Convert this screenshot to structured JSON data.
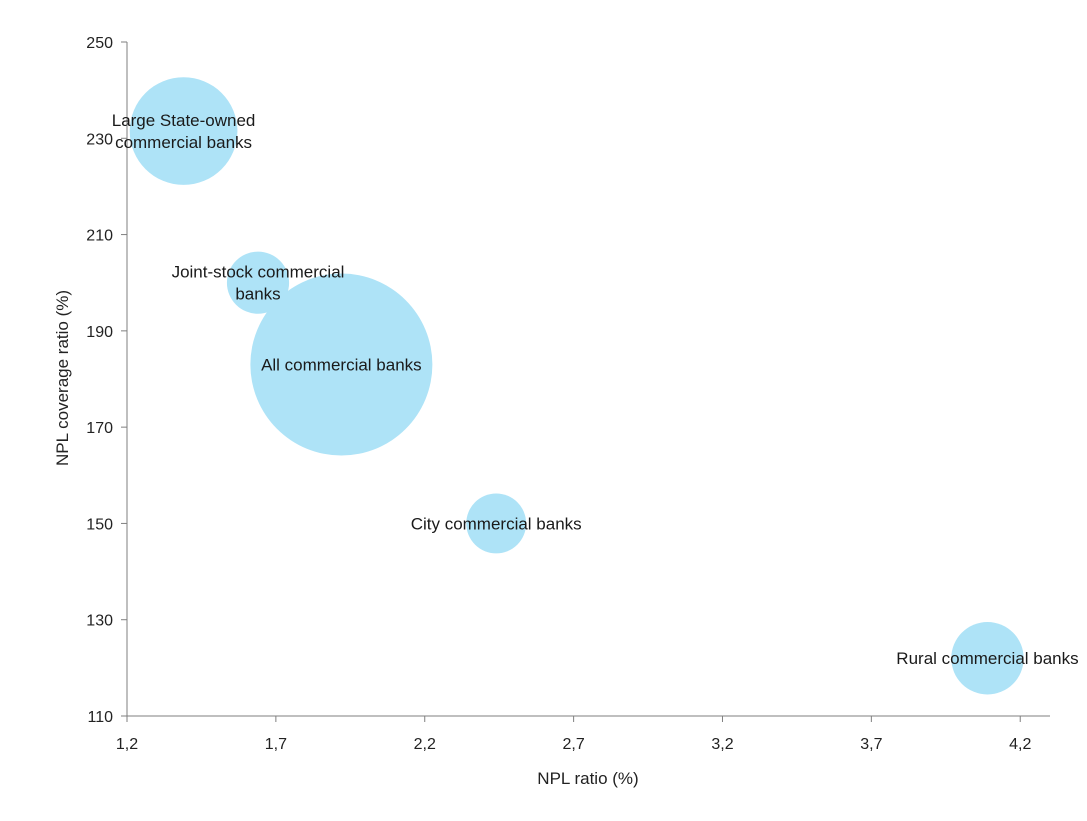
{
  "chart_data": {
    "type": "scatter",
    "subtype": "bubble",
    "xlabel": "NPL ratio (%)",
    "ylabel": "NPL coverage ratio (%)",
    "xlim": [
      1.2,
      4.3
    ],
    "ylim": [
      110,
      250
    ],
    "x_ticks": [
      "1,2",
      "1,7",
      "2,2",
      "2,7",
      "3,2",
      "3,7",
      "4,2"
    ],
    "y_ticks": [
      "110",
      "130",
      "150",
      "170",
      "190",
      "210",
      "230",
      "250"
    ],
    "grid": false,
    "legend": "none",
    "bubble_color": "#aee3f7",
    "points": [
      {
        "label": [
          "Large State-owned",
          "commercial banks"
        ],
        "x": 1.39,
        "y": 231.5,
        "size": 21
      },
      {
        "label": [
          "Joint-stock commercial",
          "banks"
        ],
        "x": 1.64,
        "y": 200,
        "size": 7
      },
      {
        "label": [
          "All commercial banks"
        ],
        "x": 1.92,
        "y": 183,
        "size": 60
      },
      {
        "label": [
          "City commercial banks"
        ],
        "x": 2.44,
        "y": 150,
        "size": 6.5
      },
      {
        "label": [
          "Rural commercial banks"
        ],
        "x": 4.09,
        "y": 122,
        "size": 9.5
      }
    ]
  }
}
